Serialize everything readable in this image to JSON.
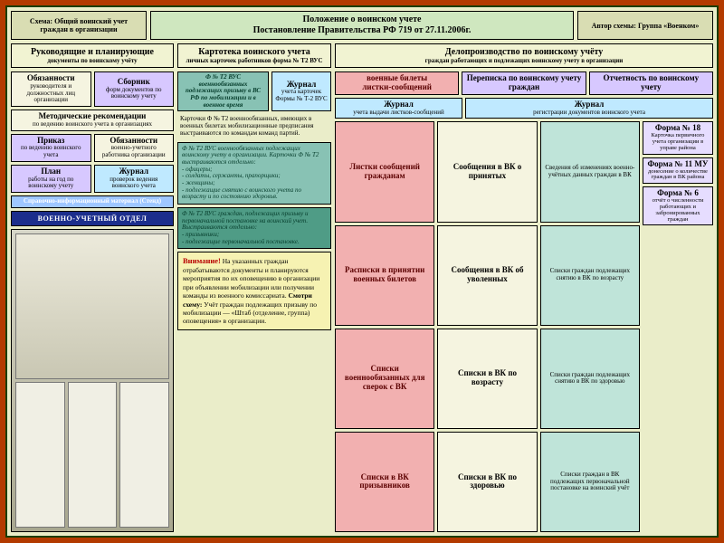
{
  "colors": {
    "bg": "#b33a00",
    "outer_border": "#1a3e00",
    "panel_bg": "#eaedc9",
    "top_side_bg": "#d9ddb3",
    "top_center_bg": "#cfe7bf",
    "header_bg": "#f1f3d2",
    "cream": "#f5f4e0",
    "cyan": "#bfe9ff",
    "violet": "#d7c8ff",
    "blue": "#9fc7ff",
    "pink": "#f2b0b0",
    "pink_text": "#5b0000",
    "teal": "#88c2b4",
    "teal_text": "#053c2b",
    "darkteal": "#4f9c86",
    "lightteal": "#bfe4d9",
    "lyellow": "#f6f2b2",
    "ltviolet": "#e6ddff",
    "stand_bg": "#1c2e8c",
    "warn_red": "#b80000"
  },
  "top": {
    "left": "Схема: Общий воинский учет граждан в организации",
    "center_l1": "Положение о воинском учете",
    "center_l2": "Постановление Правительства РФ 719 от 27.11.2006г.",
    "right": "Автор схемы: Группа «Военком»"
  },
  "heads": {
    "h1_t": "Руководящие и планирующие",
    "h1_s": "документы по воинскому учёту",
    "h2_t": "Картотека воинского учета",
    "h2_s": "личных карточек работников форма № Т2 ВУС",
    "h3_t": "Делопроизводство по воинскому учёту",
    "h3_s": "граждан работающих и подлежащих воинскому учету в организации"
  },
  "c1": {
    "b1_t": "Обязанности",
    "b1_s": "руководителя и должностных лиц организации",
    "b2_t": "Сборник",
    "b2_s": "форм документов по воинскому учету",
    "b3_t": "Методические рекомендации",
    "b3_s": "по ведению воинского учета в организациях",
    "b4_t": "Приказ",
    "b4_s": "по ведению воинского учета",
    "b5_t": "Обязанности",
    "b5_s": "военно-учетного работника организации",
    "b6_t": "План",
    "b6_s": "работы на год по воинскому учету",
    "b7_t": "Журнал",
    "b7_s": "проверок ведения воинского учета",
    "ref": "Справочно-информационный материал (Стенд)",
    "stand": "ВОЕННО-УЧЕТНЫЙ ОТДЕЛ"
  },
  "c2": {
    "b1": "Ф № Т2 ВУС военнообязанных подлежащих призыву в ВС РФ по мобилизации и в военное время",
    "note": "Карточки Ф № Т2 военнообязанных, имеющих в военных билетах мобилизационные предписания выстраиваются по командам команд партий.",
    "b2": "Ф № Т2 ВУС военнообязанных подлежащих воинскому учету в организации. Карточки Ф № Т2 выстраиваются отдельно:\n- офицеры;\n- солдаты, сержанты, прапорщики;\n- женщины;\n- подлежащие снятию с воинского учета по возрасту и по состоянию здоровья.",
    "j_t": "Журнал",
    "j_s": "учета карточек Формы № Т-2 ВУС",
    "b3": "Ф № Т2 ВУС граждан, подлежащих призыву и первоначальной постановке на воинский учет. Выстраиваются отдельно:\n- призывники;\n- подлежащие первоначальной постановке.",
    "warn_lead": "Внимание!",
    "warn_body": " На указанных граждан отрабатываются документы и планируются мероприятия по их оповещению в организации при объявлении мобилизации или получении команды из военного комиссариата. ",
    "warn_tail_lead": "Смотри схему:",
    "warn_tail": " Учёт граждан подлежащих призыву по мобилизации — «Штаб (отделение, группа) оповещения» в организации."
  },
  "c3": {
    "r1a": "военные билеты\nлистки-сообщений",
    "r1b": "Переписка по воинскому учету граждан",
    "r1c": "Отчетность по воинскому учету",
    "r2a_t": "Журнал",
    "r2a_s": "учета выдачи листков-сообщений",
    "r2b_t": "Журнал",
    "r2b_s": "регистрации документов воинского учета",
    "sA": [
      "Листки сообщений гражданам",
      "Расписки в принятии военных билетов",
      "Списки военнообязанных для сверок с ВК",
      "Списки в ВК призывников"
    ],
    "sB": [
      "Сообщения в ВК о принятых",
      "Сообщения в ВК об уволенных",
      "Списки в ВК по возрасту",
      "Списки в ВК по здоровью"
    ],
    "sC": [
      "Сведения об изменениях военно-учётных данных граждан в ВК",
      "Списки граждан подлежащих снятию в ВК по возрасту",
      "Списки граждан подлежащих снятию в ВК по здоровью",
      "Списки граждан в ВК подлежащих первоначальной постановке на воинский учёт"
    ],
    "f18_t": "Форма № 18",
    "f18_s": "Карточка первичного учета организации в управе района",
    "f11_t": "Форма № 11 МУ",
    "f11_s": "донесение о количестве граждан в ВК района",
    "f6_t": "Форма № 6",
    "f6_s": "отчёт о численности работающих и забронированных граждан"
  }
}
